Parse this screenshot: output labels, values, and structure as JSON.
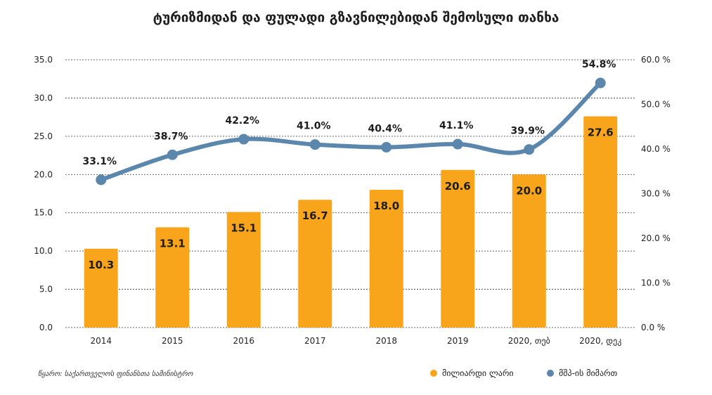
{
  "chart_data": {
    "type": "bar+line",
    "title": "ტურიზმიდან და ფულადი გზავნილებიდან შემოსული თანხა",
    "categories": [
      "2014",
      "2015",
      "2016",
      "2017",
      "2018",
      "2019",
      "2020, თებ",
      "2020, დეკ"
    ],
    "series": [
      {
        "name": "მილიარდი ლარი",
        "type": "bar",
        "axis": "left",
        "values": [
          10.3,
          13.1,
          15.1,
          16.7,
          18.0,
          20.6,
          20.0,
          27.6
        ],
        "labels": [
          "10.3",
          "13.1",
          "15.1",
          "16.7",
          "18.0",
          "20.6",
          "20.0",
          "27.6"
        ],
        "color": "#F9A51B"
      },
      {
        "name": "მშპ-ის მიმართ",
        "type": "line",
        "axis": "right",
        "values": [
          33.1,
          38.7,
          42.2,
          41.0,
          40.4,
          41.1,
          39.9,
          54.8
        ],
        "labels": [
          "33.1%",
          "38.7%",
          "42.2%",
          "41.0%",
          "40.4%",
          "41.1%",
          "39.9%",
          "54.8%"
        ],
        "color": "#5B87AC"
      }
    ],
    "y_left": {
      "min": 0,
      "max": 35,
      "ticks": [
        "0.0",
        "5.0",
        "10.0",
        "15.0",
        "20.0",
        "25.0",
        "30.0",
        "35.0"
      ]
    },
    "y_right": {
      "min": 0,
      "max": 60,
      "ticks": [
        "0.0 %",
        "10.0 %",
        "20.0 %",
        "30.0 %",
        "40.0 %",
        "50.0 %",
        "60.0 %"
      ]
    },
    "grid": "dashed horizontal",
    "legend_position": "bottom-right"
  },
  "source_note": "წყარო: საქართველოს ფინანსთა სამინისტრო",
  "colors": {
    "bar": "#F9A51B",
    "line": "#5B87AC",
    "text": "#1d1d1d"
  }
}
